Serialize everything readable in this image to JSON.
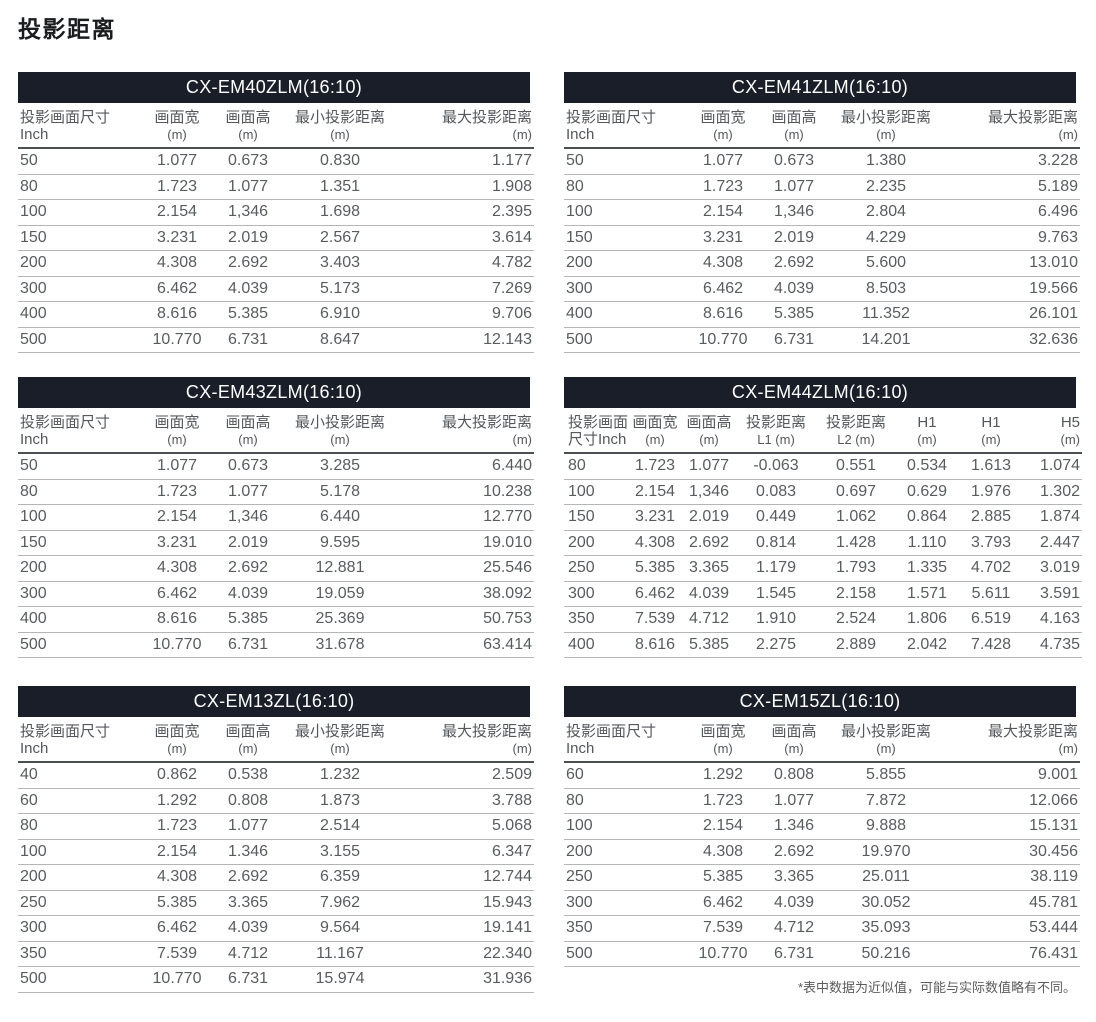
{
  "page": {
    "title": "投影距离",
    "footnote": "*表中数据为近似值，可能与实际数值略有不同。"
  },
  "colors": {
    "title_bar_bg": "#191e29",
    "title_bar_text": "#ffffff",
    "header_text": "#54575b",
    "data_text": "#595c5f",
    "thick_rule": "#4b4e52",
    "row_rule": "#b3b5b7"
  },
  "tables": [
    {
      "title": "CX-EM40ZLM(16:10)",
      "columns": [
        {
          "line1": "投影画面尺寸",
          "line2": "Inch"
        },
        {
          "line1": "画面宽",
          "line2": "(m)"
        },
        {
          "line1": "画面高",
          "line2": "(m)"
        },
        {
          "line1": "最小投影距离",
          "line2": "(m)"
        },
        {
          "line1": "最大投影距离",
          "line2": "(m)"
        }
      ],
      "rows": [
        [
          "50",
          "1.077",
          "0.673",
          "0.830",
          "1.177"
        ],
        [
          "80",
          "1.723",
          "1.077",
          "1.351",
          "1.908"
        ],
        [
          "100",
          "2.154",
          "1,346",
          "1.698",
          "2.395"
        ],
        [
          "150",
          "3.231",
          "2.019",
          "2.567",
          "3.614"
        ],
        [
          "200",
          "4.308",
          "2.692",
          "3.403",
          "4.782"
        ],
        [
          "300",
          "6.462",
          "4.039",
          "5.173",
          "7.269"
        ],
        [
          "400",
          "8.616",
          "5.385",
          "6.910",
          "9.706"
        ],
        [
          "500",
          "10.770",
          "6.731",
          "8.647",
          "12.143"
        ]
      ]
    },
    {
      "title": "CX-EM41ZLM(16:10)",
      "columns": [
        {
          "line1": "投影画面尺寸",
          "line2": "Inch"
        },
        {
          "line1": "画面宽",
          "line2": "(m)"
        },
        {
          "line1": "画面高",
          "line2": "(m)"
        },
        {
          "line1": "最小投影距离",
          "line2": "(m)"
        },
        {
          "line1": "最大投影距离",
          "line2": "(m)"
        }
      ],
      "rows": [
        [
          "50",
          "1.077",
          "0.673",
          "1.380",
          "3.228"
        ],
        [
          "80",
          "1.723",
          "1.077",
          "2.235",
          "5.189"
        ],
        [
          "100",
          "2.154",
          "1,346",
          "2.804",
          "6.496"
        ],
        [
          "150",
          "3.231",
          "2.019",
          "4.229",
          "9.763"
        ],
        [
          "200",
          "4.308",
          "2.692",
          "5.600",
          "13.010"
        ],
        [
          "300",
          "6.462",
          "4.039",
          "8.503",
          "19.566"
        ],
        [
          "400",
          "8.616",
          "5.385",
          "11.352",
          "26.101"
        ],
        [
          "500",
          "10.770",
          "6.731",
          "14.201",
          "32.636"
        ]
      ]
    },
    {
      "title": "CX-EM43ZLM(16:10)",
      "columns": [
        {
          "line1": "投影画面尺寸",
          "line2": "Inch"
        },
        {
          "line1": "画面宽",
          "line2": "(m)"
        },
        {
          "line1": "画面高",
          "line2": "(m)"
        },
        {
          "line1": "最小投影距离",
          "line2": "(m)"
        },
        {
          "line1": "最大投影距离",
          "line2": "(m)"
        }
      ],
      "rows": [
        [
          "50",
          "1.077",
          "0.673",
          "3.285",
          "6.440"
        ],
        [
          "80",
          "1.723",
          "1.077",
          "5.178",
          "10.238"
        ],
        [
          "100",
          "2.154",
          "1,346",
          "6.440",
          "12.770"
        ],
        [
          "150",
          "3.231",
          "2.019",
          "9.595",
          "19.010"
        ],
        [
          "200",
          "4.308",
          "2.692",
          "12.881",
          "25.546"
        ],
        [
          "300",
          "6.462",
          "4.039",
          "19.059",
          "38.092"
        ],
        [
          "400",
          "8.616",
          "5.385",
          "25.369",
          "50.753"
        ],
        [
          "500",
          "10.770",
          "6.731",
          "31.678",
          "63.414"
        ]
      ]
    },
    {
      "title": "CX-EM44ZLM(16:10)",
      "columns": [
        {
          "line1": "投影画面",
          "line2": "尺寸Inch"
        },
        {
          "line1": "画面宽",
          "line2": "(m)"
        },
        {
          "line1": "画面高",
          "line2": "(m)"
        },
        {
          "line1": "投影距离",
          "line2": "L1 (m)"
        },
        {
          "line1": "投影距离",
          "line2": "L2 (m)"
        },
        {
          "line1": "H1",
          "line2": "(m)"
        },
        {
          "line1": "H1",
          "line2": "(m)"
        },
        {
          "line1": "H5",
          "line2": "(m)"
        }
      ],
      "rows": [
        [
          "80",
          "1.723",
          "1.077",
          "-0.063",
          "0.551",
          "0.534",
          "1.613",
          "1.074"
        ],
        [
          "100",
          "2.154",
          "1,346",
          "0.083",
          "0.697",
          "0.629",
          "1.976",
          "1.302"
        ],
        [
          "150",
          "3.231",
          "2.019",
          "0.449",
          "1.062",
          "0.864",
          "2.885",
          "1.874"
        ],
        [
          "200",
          "4.308",
          "2.692",
          "0.814",
          "1.428",
          "1.110",
          "3.793",
          "2.447"
        ],
        [
          "250",
          "5.385",
          "3.365",
          "1.179",
          "1.793",
          "1.335",
          "4.702",
          "3.019"
        ],
        [
          "300",
          "6.462",
          "4.039",
          "1.545",
          "2.158",
          "1.571",
          "5.611",
          "3.591"
        ],
        [
          "350",
          "7.539",
          "4.712",
          "1.910",
          "2.524",
          "1.806",
          "6.519",
          "4.163"
        ],
        [
          "400",
          "8.616",
          "5.385",
          "2.275",
          "2.889",
          "2.042",
          "7.428",
          "4.735"
        ]
      ]
    },
    {
      "title": "CX-EM13ZL(16:10)",
      "columns": [
        {
          "line1": "投影画面尺寸",
          "line2": "Inch"
        },
        {
          "line1": "画面宽",
          "line2": "(m)"
        },
        {
          "line1": "画面高",
          "line2": "(m)"
        },
        {
          "line1": "最小投影距离",
          "line2": "(m)"
        },
        {
          "line1": "最大投影距离",
          "line2": "(m)"
        }
      ],
      "rows": [
        [
          "40",
          "0.862",
          "0.538",
          "1.232",
          "2.509"
        ],
        [
          "60",
          "1.292",
          "0.808",
          "1.873",
          "3.788"
        ],
        [
          "80",
          "1.723",
          "1.077",
          "2.514",
          "5.068"
        ],
        [
          "100",
          "2.154",
          "1.346",
          "3.155",
          "6.347"
        ],
        [
          "200",
          "4.308",
          "2.692",
          "6.359",
          "12.744"
        ],
        [
          "250",
          "5.385",
          "3.365",
          "7.962",
          "15.943"
        ],
        [
          "300",
          "6.462",
          "4.039",
          "9.564",
          "19.141"
        ],
        [
          "350",
          "7.539",
          "4.712",
          "11.167",
          "22.340"
        ],
        [
          "500",
          "10.770",
          "6.731",
          "15.974",
          "31.936"
        ]
      ]
    },
    {
      "title": "CX-EM15ZL(16:10)",
      "columns": [
        {
          "line1": "投影画面尺寸",
          "line2": "Inch"
        },
        {
          "line1": "画面宽",
          "line2": "(m)"
        },
        {
          "line1": "画面高",
          "line2": "(m)"
        },
        {
          "line1": "最小投影距离",
          "line2": "(m)"
        },
        {
          "line1": "最大投影距离",
          "line2": "(m)"
        }
      ],
      "rows": [
        [
          "60",
          "1.292",
          "0.808",
          "5.855",
          "9.001"
        ],
        [
          "80",
          "1.723",
          "1.077",
          "7.872",
          "12.066"
        ],
        [
          "100",
          "2.154",
          "1.346",
          "9.888",
          "15.131"
        ],
        [
          "200",
          "4.308",
          "2.692",
          "19.970",
          "30.456"
        ],
        [
          "250",
          "5.385",
          "3.365",
          "25.011",
          "38.119"
        ],
        [
          "300",
          "6.462",
          "4.039",
          "30.052",
          "45.781"
        ],
        [
          "350",
          "7.539",
          "4.712",
          "35.093",
          "53.444"
        ],
        [
          "500",
          "10.770",
          "6.731",
          "50.216",
          "76.431"
        ]
      ]
    }
  ]
}
